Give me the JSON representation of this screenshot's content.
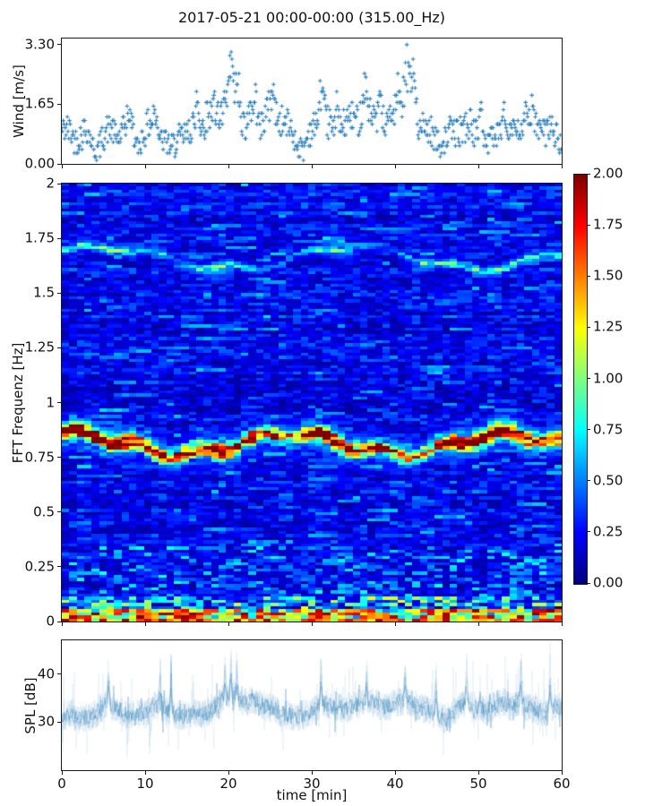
{
  "figure": {
    "title": "2017-05-21 00:00-00:00 (315.00_Hz)",
    "background_color": "#ffffff",
    "accent_color": "#1f77b4"
  },
  "chart_data": [
    {
      "name": "wind-speed",
      "type": "scatter",
      "marker": "+",
      "color": "#1f77b4",
      "ylabel": "Wind [m/s]",
      "ytick_labels": [
        "0.00",
        "1.65",
        "3.30"
      ],
      "ytick_values": [
        0,
        1.65,
        3.3
      ],
      "ylim": [
        0,
        3.47
      ],
      "xlim": [
        0,
        60
      ],
      "xtick_values": [
        0,
        10,
        20,
        30,
        40,
        50,
        60
      ],
      "samples_per_minute": 12,
      "quantize_ms": 0.1,
      "jitter_ms": 0.85,
      "minute_means": [
        0.9,
        0.75,
        0.7,
        0.8,
        0.4,
        0.8,
        1.0,
        0.85,
        1.1,
        0.5,
        0.75,
        1.15,
        0.7,
        0.45,
        0.9,
        0.7,
        1.15,
        1.0,
        1.25,
        1.2,
        1.75,
        1.5,
        1.1,
        1.45,
        1.1,
        1.4,
        1.2,
        1.0,
        0.75,
        0.5,
        1.0,
        1.3,
        1.0,
        0.8,
        1.0,
        1.2,
        1.5,
        1.3,
        1.1,
        1.0,
        1.3,
        1.75,
        1.4,
        1.1,
        0.9,
        0.8,
        0.7,
        0.9,
        1.0,
        0.9,
        0.7,
        0.5,
        0.8,
        1.1,
        0.9,
        1.0,
        1.2,
        1.0,
        0.8,
        0.9,
        0.7
      ],
      "gust_peaks": [
        {
          "t": 8.2,
          "v": 1.65
        },
        {
          "t": 11.3,
          "v": 1.65
        },
        {
          "t": 16.2,
          "v": 2.0
        },
        {
          "t": 18.4,
          "v": 1.9
        },
        {
          "t": 20.4,
          "v": 3.15
        },
        {
          "t": 21.1,
          "v": 2.6
        },
        {
          "t": 23.3,
          "v": 2.1
        },
        {
          "t": 25.4,
          "v": 2.3
        },
        {
          "t": 31.2,
          "v": 2.4
        },
        {
          "t": 33.0,
          "v": 1.9
        },
        {
          "t": 36.4,
          "v": 2.5
        },
        {
          "t": 38.2,
          "v": 2.2
        },
        {
          "t": 40.3,
          "v": 2.8
        },
        {
          "t": 41.5,
          "v": 3.3
        },
        {
          "t": 42.2,
          "v": 2.9
        },
        {
          "t": 50.3,
          "v": 1.9
        },
        {
          "t": 53.2,
          "v": 1.5
        },
        {
          "t": 56.3,
          "v": 1.5
        }
      ]
    },
    {
      "name": "spectrogram",
      "type": "heatmap",
      "colormap": "jet",
      "clim": [
        0,
        2
      ],
      "ylabel": "FFT Frequenz [Hz]",
      "ytick_labels": [
        "0",
        "0.25",
        "0.5",
        "0.75",
        "1",
        "1.25",
        "1.5",
        "1.75",
        "2"
      ],
      "ytick_values": [
        0,
        0.25,
        0.5,
        0.75,
        1,
        1.25,
        1.5,
        1.75,
        2
      ],
      "ylim": [
        0,
        2
      ],
      "xlim": [
        0,
        60
      ],
      "xtick_values": [
        0,
        10,
        20,
        30,
        40,
        50,
        60
      ],
      "grid_cols": 67,
      "grid_rows": 140,
      "background_range": [
        0.05,
        0.35
      ],
      "streak_probability": 0.07,
      "streak_level_range": [
        0.25,
        0.6
      ],
      "bands": [
        {
          "name": "primary-wave-band",
          "center_hz": 0.81,
          "sigma_hz": 0.02,
          "peak_value": 2.0,
          "red_row_probability": 0.06,
          "wobble": {
            "amp1_hz": 0.045,
            "period1_min": 26,
            "phase1": 1.2,
            "amp2_hz": 0.02,
            "period2_min": 7.3
          },
          "minute_intensity": [
            0.85,
            0.95,
            1,
            0.95,
            0.9,
            0.95,
            0.9,
            0.85,
            0.9,
            0.8,
            0.75,
            0.8,
            0.7,
            0.6,
            0.7,
            0.75,
            0.8,
            0.75,
            0.85,
            0.95,
            1,
            0.9,
            0.8,
            0.75,
            0.65,
            0.7,
            0.65,
            0.6,
            0.6,
            0.65,
            0.8,
            0.9,
            0.95,
            0.9,
            0.85,
            0.75,
            0.65,
            0.6,
            0.65,
            0.7,
            0.65,
            0.6,
            0.55,
            0.5,
            0.55,
            0.65,
            0.75,
            0.9,
            0.95,
            1,
            1,
            0.95,
            0.9,
            0.95,
            0.95,
            0.9,
            0.85,
            0.8,
            0.75,
            0.8,
            0.75
          ]
        },
        {
          "name": "secondary-band",
          "center_hz": 1.66,
          "sigma_hz": 0.013,
          "peak_value": 0.8,
          "red_row_probability": 0,
          "wobble": {
            "amp1_hz": 0.05,
            "period1_min": 30,
            "phase1": 0.5,
            "amp2_hz": 0.015,
            "period2_min": 9
          },
          "minute_intensity": [
            0.7,
            0.75,
            0.8,
            0.8,
            0.75,
            0.8,
            0.85,
            0.8,
            0.75,
            0.7,
            0.6,
            0.55,
            0.6,
            0.65,
            0.7,
            0.75,
            0.8,
            0.85,
            0.9,
            0.9,
            0.85,
            0.8,
            0.7,
            0.6,
            0.5,
            0.45,
            0.4,
            0.45,
            0.5,
            0.6,
            0.7,
            0.8,
            0.8,
            0.75,
            0.7,
            0.65,
            0.55,
            0.45,
            0.4,
            0.4,
            0.45,
            0.5,
            0.6,
            0.7,
            0.8,
            0.85,
            0.85,
            0.8,
            0.75,
            0.7,
            0.75,
            0.8,
            0.85,
            0.8,
            0.75,
            0.7,
            0.75,
            0.8,
            0.75,
            0.7,
            0.65
          ]
        },
        {
          "name": "low-frequency-floor-band",
          "floor": true,
          "bright_below_hz": 0.06,
          "bottom_row_below_hz": 0.018,
          "speckle_below_hz": 0.35,
          "peak_value": 2.0
        }
      ],
      "colorbar": {
        "tick_labels": [
          "0.00",
          "0.25",
          "0.50",
          "0.75",
          "1.00",
          "1.25",
          "1.50",
          "1.75",
          "2.00"
        ],
        "tick_values": [
          0,
          0.25,
          0.5,
          0.75,
          1,
          1.25,
          1.5,
          1.75,
          2
        ]
      }
    },
    {
      "name": "spl",
      "type": "line",
      "color": "#1f77b4",
      "ylabel": "SPL [dB]",
      "xlabel": "time [min]",
      "ytick_labels": [
        "30",
        "40"
      ],
      "ytick_values": [
        30,
        40
      ],
      "ylim": [
        20,
        47
      ],
      "xlim": [
        0,
        60
      ],
      "xtick_labels": [
        "0",
        "10",
        "20",
        "30",
        "40",
        "50",
        "60"
      ],
      "xtick_values": [
        0,
        10,
        20,
        30,
        40,
        50,
        60
      ],
      "noise_db": 3.1,
      "minute_means": [
        31,
        32,
        30.5,
        31,
        31.5,
        33.5,
        33,
        32.5,
        31,
        32,
        31.5,
        33.5,
        33,
        32,
        31.5,
        31,
        32,
        31.5,
        32.5,
        34.5,
        35.5,
        35,
        34,
        34.5,
        33.5,
        33,
        32,
        31.5,
        31,
        31.5,
        32,
        34,
        33.5,
        33,
        33,
        33.5,
        34,
        34.5,
        33.5,
        33,
        34,
        34.5,
        34,
        33,
        32.5,
        31.5,
        30.5,
        32,
        34,
        33.5,
        33,
        32.5,
        33.5,
        34,
        33,
        34,
        33,
        32.5,
        32,
        33,
        33.5
      ],
      "spike_peaks": [
        {
          "t": 5.6,
          "v": 44
        },
        {
          "t": 11.8,
          "v": 43
        },
        {
          "t": 13.1,
          "v": 44
        },
        {
          "t": 19.6,
          "v": 44
        },
        {
          "t": 20.3,
          "v": 46
        },
        {
          "t": 21.0,
          "v": 44
        },
        {
          "t": 31.1,
          "v": 45
        },
        {
          "t": 36.6,
          "v": 44
        },
        {
          "t": 41.2,
          "v": 44
        },
        {
          "t": 44.9,
          "v": 43
        },
        {
          "t": 48.6,
          "v": 45
        },
        {
          "t": 55.1,
          "v": 44
        },
        {
          "t": 58.6,
          "v": 44
        }
      ]
    }
  ]
}
